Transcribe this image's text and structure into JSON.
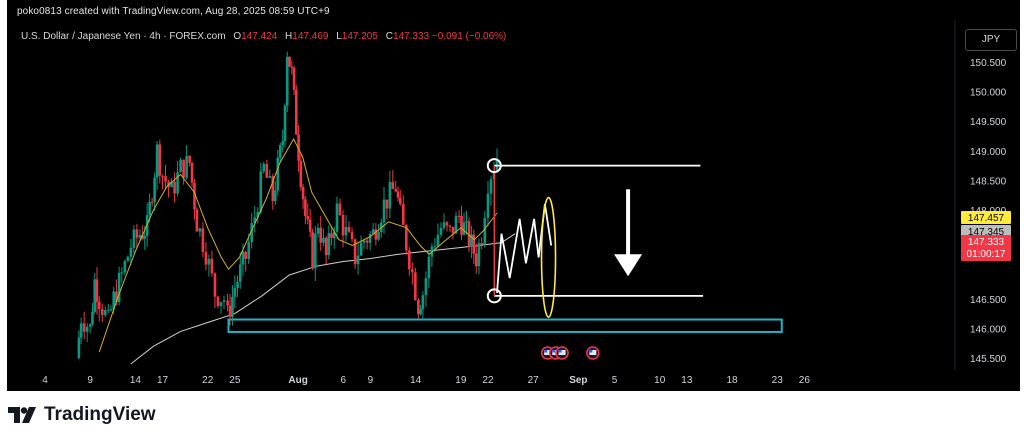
{
  "header": {
    "created_by": "poko0813 created with TradingView.com, Aug 28, 2025 08:59 UTC+9",
    "symbol_title": "U.S. Dollar / Japanese Yen · 4h · FOREX.com",
    "ohlc": {
      "o_label": "O",
      "o_value": "147.424",
      "h_label": "H",
      "h_value": "147.469",
      "l_label": "L",
      "l_value": "147.205",
      "c_label": "C",
      "c_value": "147.333",
      "change": "−0.091 (−0.06%)"
    },
    "currency_button": "JPY"
  },
  "brand": {
    "name": "TradingView"
  },
  "colors": {
    "up": "#089981",
    "down": "#f23645",
    "ma_short": "#d4b21c",
    "ma_long": "#d1d1c8",
    "zone": "#1fb2c9",
    "badge_yellow": "#ffeb3b",
    "badge_gray": "#bdbdbd",
    "badge_red": "#f23645"
  },
  "chart_data": {
    "type": "candlestick",
    "title": "U.S. Dollar / Japanese Yen · 4h · FOREX.com",
    "y_range": [
      145.3,
      151.3
    ],
    "y_ticks": [
      "150.500",
      "150.000",
      "149.500",
      "149.000",
      "148.500",
      "148.000",
      "146.500",
      "146.000",
      "145.500"
    ],
    "x_ticks": [
      {
        "label": "4",
        "day": 4
      },
      {
        "label": "9",
        "day": 9
      },
      {
        "label": "14",
        "day": 14
      },
      {
        "label": "17",
        "day": 17
      },
      {
        "label": "22",
        "day": 22
      },
      {
        "label": "25",
        "day": 25
      },
      {
        "label": "Aug",
        "day": 32
      },
      {
        "label": "6",
        "day": 37
      },
      {
        "label": "9",
        "day": 40
      },
      {
        "label": "14",
        "day": 45
      },
      {
        "label": "19",
        "day": 50
      },
      {
        "label": "22",
        "day": 53
      },
      {
        "label": "27",
        "day": 58
      },
      {
        "label": "Sep",
        "day": 63
      },
      {
        "label": "5",
        "day": 67
      },
      {
        "label": "10",
        "day": 72
      },
      {
        "label": "13",
        "day": 75
      },
      {
        "label": "18",
        "day": 80
      },
      {
        "label": "23",
        "day": 85
      },
      {
        "label": "26",
        "day": 88
      }
    ],
    "price_labels": [
      {
        "value": 147.457,
        "text": "147.457",
        "color": "#ffeb3b",
        "text_color": "#000000"
      },
      {
        "value": 147.345,
        "text": "147.345",
        "color": "#bdbdbd",
        "text_color": "#000000"
      },
      {
        "value": 147.333,
        "text": "147.333",
        "sub": "01:00:17",
        "color": "#f23645",
        "text_color": "#ffffff"
      }
    ],
    "series_path": [
      [
        7.5,
        145.5
      ],
      [
        8,
        146.2
      ],
      [
        9,
        146.0
      ],
      [
        9.5,
        146.8
      ],
      [
        10,
        146.5
      ],
      [
        11,
        146.1
      ],
      [
        11.6,
        146.5
      ],
      [
        12.5,
        146.9
      ],
      [
        13.5,
        147.4
      ],
      [
        14.5,
        147.6
      ],
      [
        15.3,
        147.7
      ],
      [
        16.4,
        149.0
      ],
      [
        17,
        148.6
      ],
      [
        18,
        148.3
      ],
      [
        19,
        148.7
      ],
      [
        20,
        148.8
      ],
      [
        20.8,
        147.8
      ],
      [
        21.8,
        147.3
      ],
      [
        22.8,
        146.6
      ],
      [
        23.8,
        146.5
      ],
      [
        24.2,
        146.2
      ],
      [
        25,
        146.7
      ],
      [
        26.2,
        147.2
      ],
      [
        27.2,
        147.9
      ],
      [
        28.2,
        148.7
      ],
      [
        29.2,
        148.2
      ],
      [
        30.3,
        149.2
      ],
      [
        30.8,
        150.7
      ],
      [
        31.3,
        150.3
      ],
      [
        31.8,
        149.4
      ],
      [
        32.3,
        148.6
      ],
      [
        32.8,
        147.9
      ],
      [
        33.6,
        147.2
      ],
      [
        34.2,
        147.8
      ],
      [
        35.1,
        147.2
      ],
      [
        36.3,
        148.0
      ],
      [
        37.3,
        147.6
      ],
      [
        38.3,
        147.2
      ],
      [
        39.3,
        147.5
      ],
      [
        40.3,
        147.6
      ],
      [
        41.5,
        148.1
      ],
      [
        42.8,
        148.4
      ],
      [
        43.3,
        147.9
      ],
      [
        44.3,
        147.2
      ],
      [
        45.3,
        146.4
      ],
      [
        45.8,
        146.6
      ],
      [
        46.8,
        147.4
      ],
      [
        47.8,
        147.7
      ],
      [
        48.8,
        147.6
      ],
      [
        49.8,
        147.9
      ],
      [
        50.9,
        147.5
      ],
      [
        51.7,
        147.2
      ],
      [
        52.3,
        147.6
      ],
      [
        53,
        148.5
      ],
      [
        54,
        148.9
      ]
    ],
    "ma_short": [
      [
        10,
        145.6
      ],
      [
        12,
        146.5
      ],
      [
        14,
        147.3
      ],
      [
        16,
        148.0
      ],
      [
        17.5,
        148.4
      ],
      [
        19,
        148.6
      ],
      [
        20.5,
        148.3
      ],
      [
        22,
        147.7
      ],
      [
        23.5,
        147.2
      ],
      [
        24.3,
        147.0
      ],
      [
        25.5,
        147.2
      ],
      [
        27,
        147.7
      ],
      [
        28.5,
        148.2
      ],
      [
        30,
        148.8
      ],
      [
        31.5,
        149.2
      ],
      [
        32.5,
        148.9
      ],
      [
        33.5,
        148.3
      ],
      [
        35,
        147.9
      ],
      [
        36.5,
        147.5
      ],
      [
        38,
        147.4
      ],
      [
        40,
        147.55
      ],
      [
        42,
        147.8
      ],
      [
        44,
        147.7
      ],
      [
        45.5,
        147.4
      ],
      [
        46.5,
        147.25
      ],
      [
        48,
        147.45
      ],
      [
        50,
        147.7
      ],
      [
        51.5,
        147.5
      ],
      [
        52.5,
        147.65
      ],
      [
        54,
        147.95
      ]
    ],
    "ma_long": [
      [
        13.5,
        145.4
      ],
      [
        16,
        145.7
      ],
      [
        19,
        145.95
      ],
      [
        22,
        146.1
      ],
      [
        25,
        146.25
      ],
      [
        28,
        146.55
      ],
      [
        31,
        146.9
      ],
      [
        34,
        147.05
      ],
      [
        37,
        147.13
      ],
      [
        40,
        147.18
      ],
      [
        43,
        147.25
      ],
      [
        46,
        147.3
      ],
      [
        49,
        147.35
      ],
      [
        52,
        147.4
      ],
      [
        54.5,
        147.45
      ],
      [
        56,
        147.6
      ]
    ],
    "annotations": {
      "resistance_line": {
        "value": 148.75,
        "from_day": 53.7,
        "to_day": 76.5
      },
      "support_line": {
        "value": 146.55,
        "from_day": 53.7,
        "to_day": 76.8
      },
      "demand_zone": {
        "low": 145.94,
        "high": 146.15,
        "from_day": 24.3,
        "to_day": 85.5
      },
      "down_arrow": {
        "day": 68.5,
        "from": 148.35,
        "to": 146.88
      },
      "ellipse": {
        "day": 59.7,
        "center": 147.2,
        "half_height": 1.01
      },
      "zigzag": [
        [
          54,
          146.6
        ],
        [
          54.5,
          147.6
        ],
        [
          55.4,
          146.85
        ],
        [
          56.5,
          147.85
        ],
        [
          57.2,
          147.1
        ],
        [
          58.1,
          147.85
        ],
        [
          58.6,
          147.2
        ],
        [
          59.3,
          148.1
        ],
        [
          60,
          147.4
        ]
      ]
    },
    "event_badges": [
      {
        "day": 59.6,
        "kind": "flag"
      },
      {
        "day": 60.5,
        "kind": "flag"
      },
      {
        "day": 61.2,
        "kind": "flag"
      },
      {
        "day": 64.6,
        "kind": "flag"
      }
    ]
  }
}
